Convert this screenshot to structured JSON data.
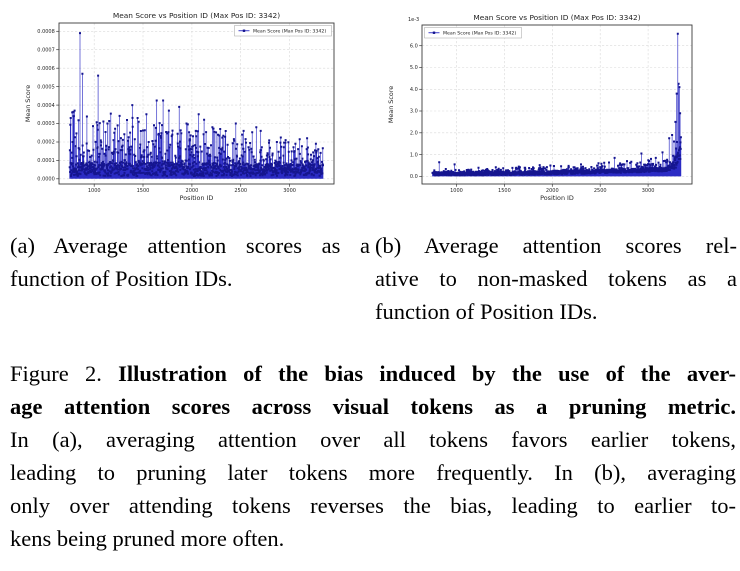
{
  "figure": {
    "subcaption_a": {
      "line1": "(a) Average attention scores as a",
      "line2": "function of Position IDs."
    },
    "subcaption_b": {
      "line1": "(b) Average attention scores rel-",
      "line2": "ative to non-masked tokens as a",
      "line3": "function of Position IDs."
    },
    "caption": {
      "line1_prefix": "Figure 2.",
      "line1_bold": "Illustration of the bias induced by the use of the aver-",
      "line2_bold": "age attention scores across visual tokens as a pruning metric.",
      "line3": "In (a), averaging attention over all tokens favors earlier tokens,",
      "line4": "leading to pruning later tokens more frequently. In (b), averaging",
      "line5": "only over attending tokens reverses the bias, leading to earlier to-",
      "line6": "kens being pruned more often."
    }
  },
  "colors": {
    "stem": "#2b2bc4",
    "marker": "#15158f",
    "grid": "#d9d9d9",
    "axis": "#3a3a3a",
    "text": "#262626",
    "legend_border": "#a0a0a0"
  },
  "chart_data": [
    {
      "id": "a",
      "type": "stem-scatter",
      "title": "Mean Score vs Position ID (Max Pos ID: 3342)",
      "xlabel": "Position ID",
      "ylabel": "Mean Score",
      "legend": {
        "label": "Mean Score (Max Pos ID: 3342)",
        "position": "top-right"
      },
      "offset_label": "",
      "xlim": [
        640,
        3455
      ],
      "ylim": [
        -2.8e-05,
        0.000845
      ],
      "x_range": [
        750,
        3342
      ],
      "xtick_values": [
        1000,
        1500,
        2000,
        2500,
        3000
      ],
      "xtick_labels": [
        "1000",
        "1500",
        "2000",
        "2500",
        "3000"
      ],
      "ytick_values": [
        0,
        0.0001,
        0.0002,
        0.0003,
        0.0004,
        0.0005,
        0.0006,
        0.0007,
        0.0008
      ],
      "ytick_labels": [
        "0.0000",
        "0.0001",
        "0.0002",
        "0.0003",
        "0.0004",
        "0.0005",
        "0.0006",
        "0.0007",
        "0.0008"
      ],
      "trend_note": "dense noisy band 0-0.0001 with frequent spikes; spike amplitude decreases with Position ID (earlier tokens get higher average attention)",
      "gen": {
        "mode": "decay",
        "seed": 42,
        "x_start": 750,
        "x_end": 3342,
        "step": 2,
        "band_min": 1.5e-05,
        "band_rand": 8e-05,
        "spike_prob": 0.42,
        "spike_amp": 0.00031,
        "decay_end": 0.45
      },
      "peaks": [
        [
          760,
          0.00033
        ],
        [
          775,
          0.00036
        ],
        [
          790,
          0.00034
        ],
        [
          800,
          0.00037
        ],
        [
          855,
          0.00079
        ],
        [
          880,
          0.00057
        ],
        [
          1040,
          0.00056
        ],
        [
          1135,
          0.0003
        ],
        [
          1240,
          0.00029
        ],
        [
          1390,
          0.0004
        ],
        [
          1445,
          0.00033
        ],
        [
          1535,
          0.00035
        ],
        [
          1640,
          0.000425
        ],
        [
          1706,
          0.000425
        ],
        [
          1765,
          0.00037
        ],
        [
          1870,
          0.00039
        ],
        [
          1945,
          0.0003
        ],
        [
          2070,
          0.00035
        ],
        [
          2125,
          0.00032
        ],
        [
          2210,
          0.00028
        ],
        [
          2290,
          0.00027
        ],
        [
          2450,
          0.0003
        ],
        [
          2530,
          0.00026
        ],
        [
          2660,
          0.00028
        ],
        [
          2705,
          0.00026
        ],
        [
          2870,
          0.0002
        ],
        [
          2960,
          0.00021
        ],
        [
          3060,
          0.00019
        ],
        [
          3180,
          0.00022
        ],
        [
          3270,
          0.00019
        ]
      ]
    },
    {
      "id": "b",
      "type": "stem-scatter",
      "title": "Mean Score vs Position ID (Max Pos ID: 3342)",
      "xlabel": "Position ID",
      "ylabel": "Mean Score",
      "legend": {
        "label": "Mean Score (Max Pos ID: 3342)",
        "position": "top-left"
      },
      "offset_label": "1e-3",
      "xlim": [
        640,
        3458
      ],
      "ylim": [
        -0.35,
        6.95
      ],
      "x_range": [
        750,
        3342
      ],
      "xtick_values": [
        1000,
        1500,
        2000,
        2500,
        3000
      ],
      "xtick_labels": [
        "1000",
        "1500",
        "2000",
        "2500",
        "3000"
      ],
      "ytick_values": [
        0,
        1,
        2,
        3,
        4,
        5,
        6
      ],
      "ytick_labels": [
        "0.0",
        "1.0",
        "2.0",
        "3.0",
        "4.0",
        "5.0",
        "6.0"
      ],
      "trend_note": "values in 1e-3 units; thin flat band near 0 that slowly rises with Position ID and explodes near the max position (~3342), peaking at ~6.55e-3 (later tokens get higher relative attention)",
      "gen": {
        "mode": "rise",
        "seed": 7,
        "x_start": 750,
        "x_end": 3342,
        "step": 2,
        "band_min": 0.04,
        "band_rand": 0.17,
        "spike_prob": 0.3,
        "spike_amp": 0.35,
        "rise": 0.22,
        "end_start": 3170,
        "end_amp": 1.1
      },
      "peaks": [
        [
          820,
          0.65
        ],
        [
          980,
          0.55
        ],
        [
          1230,
          0.4
        ],
        [
          1650,
          0.45
        ],
        [
          1980,
          0.5
        ],
        [
          2300,
          0.55
        ],
        [
          2650,
          0.85
        ],
        [
          2780,
          0.7
        ],
        [
          2930,
          1.05
        ],
        [
          3080,
          0.85
        ],
        [
          3150,
          1.1
        ],
        [
          3220,
          1.75
        ],
        [
          3250,
          1.9
        ],
        [
          3270,
          1.6
        ],
        [
          3285,
          2.5
        ],
        [
          3298,
          3.8
        ],
        [
          3310,
          6.55
        ],
        [
          3318,
          4.25
        ],
        [
          3326,
          4.1
        ],
        [
          3334,
          2.9
        ],
        [
          3342,
          1.8
        ]
      ]
    }
  ]
}
